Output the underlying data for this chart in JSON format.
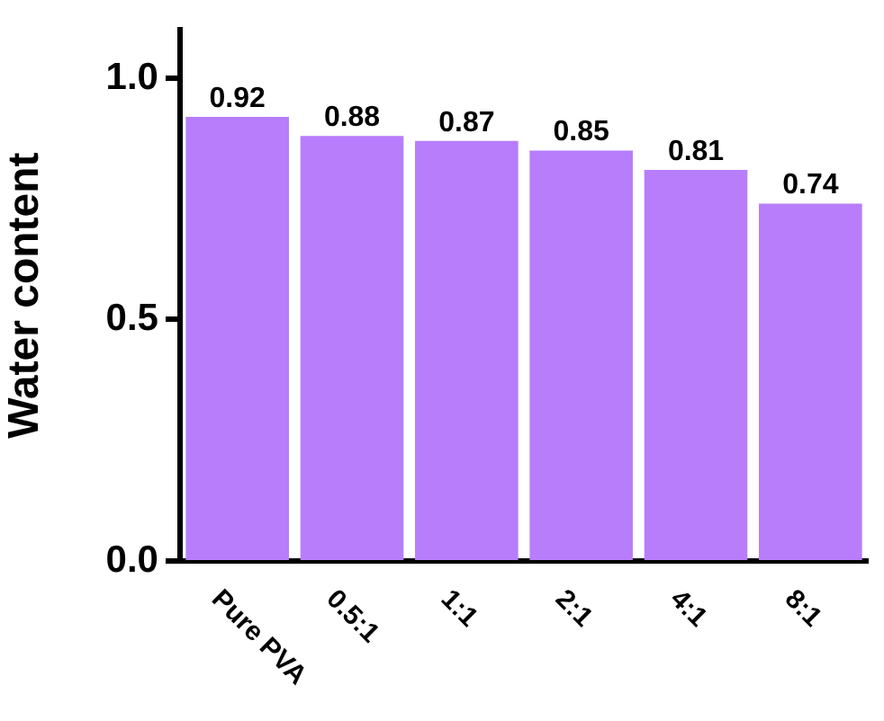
{
  "chart_data": {
    "type": "bar",
    "ylabel": "Water content",
    "categories": [
      "Pure PVA",
      "0.5:1",
      "1:1",
      "2:1",
      "4:1",
      "8:1"
    ],
    "values": [
      0.92,
      0.88,
      0.87,
      0.85,
      0.81,
      0.74
    ],
    "color": "#b77dfb",
    "ylim": [
      0,
      1.1
    ],
    "yticks": [
      {
        "value": 0,
        "label": "0.0"
      },
      {
        "value": 0.5,
        "label": "0.5"
      },
      {
        "value": 1,
        "label": "1.0"
      }
    ],
    "data_labels": true,
    "grid": false,
    "legend": false
  }
}
